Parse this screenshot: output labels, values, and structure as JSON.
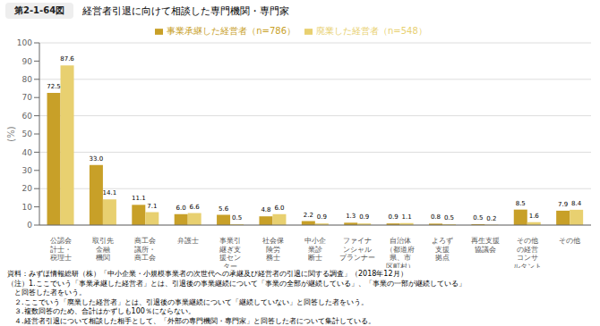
{
  "chart_data": {
    "type": "bar",
    "title": "経営者引退に向けて相談した専門機関・専門家",
    "subtitle": "第2-1-64図",
    "categories": [
      "公認会\n計士・\n税理士",
      "取引先\n金融\n機関",
      "商工会\n議所・\n商工会",
      "弁護士",
      "事業引\n継ぎ支\n援セン\nター",
      "社会保\n険労\n務士",
      "中小企\n業診\n断士",
      "ファイナ\nンシャル\nプランナー",
      "自治体\n（都道府\n県、市\n区町村）",
      "よろず\n支援\n拠点",
      "再生支援\n協議会",
      "その他\nの経営\nコンサ\nルタント",
      "その他"
    ],
    "series": [
      {
        "name": "事業承継した経営者（n=786）",
        "color": "#C8A028",
        "values": [
          72.5,
          33.0,
          11.1,
          6.0,
          5.6,
          4.8,
          2.2,
          1.3,
          0.9,
          0.8,
          0.5,
          8.5,
          7.9
        ],
        "value_labels": [
          "72.5",
          "33.0",
          "11.1",
          "6.0",
          "5.6",
          "4.8",
          "2.2",
          "1.3",
          "0.9",
          "0.8",
          "0.5",
          "8.5",
          "7.9"
        ]
      },
      {
        "name": "廃業した経営者（n=548）",
        "color": "#E8D070",
        "values": [
          87.6,
          14.1,
          7.1,
          6.6,
          0.5,
          6.0,
          0.9,
          0.9,
          1.1,
          0.5,
          0.2,
          1.6,
          8.4
        ],
        "value_labels": [
          "87.6",
          "14.1",
          "7.1",
          "6.6",
          "0.5",
          "6.0",
          "0.9",
          "0.9",
          "1.1",
          "0.5",
          "0.2",
          "1.6",
          "8.4"
        ]
      }
    ],
    "y_label": "(%)",
    "ylim": [
      0,
      100
    ],
    "yticks": [
      0,
      10,
      20,
      30,
      40,
      50,
      60,
      70,
      80,
      90,
      100
    ],
    "grid": true,
    "legend": "top",
    "data_labels": true,
    "footnotes": [
      "資料：みずほ情報総研（株）「中小企業・小規模事業者の次世代への承継及び経営者の引退に関する調査」（2018年12月）",
      "（注）1.ここでいう「事業承継した経営者」とは、引退後の事業継続について「事業の全部が継続している」、「事業の一部が継続している」",
      "　と回答した者をいう。",
      "　２.ここでいう「廃業した経営者」とは、引退後の事業継続について「継続していない」と回答した者をいう。",
      "　３.複数回答のため、合計はかずしも100％にならない。",
      "　４.経営者引退について相談した相手として、「外部の専門機関・専門家」と回答した者について集計している。"
    ]
  }
}
